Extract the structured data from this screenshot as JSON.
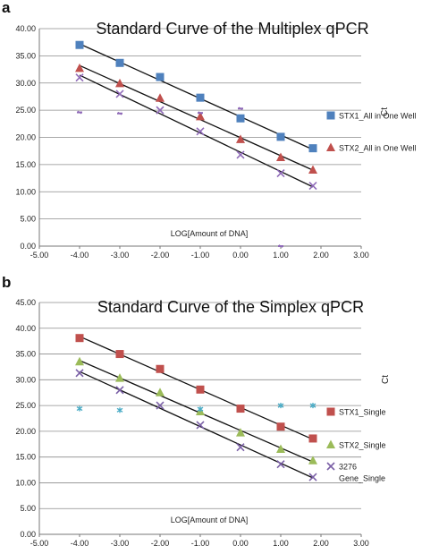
{
  "chart_data": [
    {
      "type": "scatter",
      "panel": "a",
      "title": "Standard Curve of the Multiplex qPCR",
      "xlabel": "LOG[Amount of DNA]",
      "ylabel": "Ct",
      "xlim": [
        -5,
        3
      ],
      "ylim": [
        0,
        40
      ],
      "xticks": [
        "-5.00",
        "-4.00",
        "-3.00",
        "-2.00",
        "-1.00",
        "0.00",
        "1.00",
        "2.00",
        "3.00"
      ],
      "yticks": [
        "0.00",
        "5.00",
        "10.00",
        "15.00",
        "20.00",
        "25.00",
        "30.00",
        "35.00",
        "40.00"
      ],
      "grid": "horizontal",
      "legend_position": "right",
      "series": [
        {
          "name": "STX1_All in One Well",
          "marker": "square",
          "color": "#4f81bd",
          "trendline": true,
          "x": [
            -4,
            -3,
            -2,
            -1,
            0,
            1,
            1.8
          ],
          "y": [
            37.0,
            33.7,
            31.1,
            27.3,
            23.5,
            20.1,
            18.0
          ]
        },
        {
          "name": "STX2_All in One Well",
          "marker": "triangle",
          "color": "#c0504d",
          "trendline": true,
          "x": [
            -4,
            -3,
            -2,
            -1,
            0,
            1,
            1.8
          ],
          "y": [
            32.7,
            29.9,
            27.2,
            23.8,
            19.6,
            16.3,
            14.0
          ]
        },
        {
          "name": "",
          "marker": "x",
          "color": "#8f6ab8",
          "trendline": true,
          "x": [
            -4,
            -3,
            -2,
            -1,
            0,
            1,
            1.8
          ],
          "y": [
            31.0,
            28.0,
            25.0,
            21.1,
            16.8,
            13.4,
            11.1
          ]
        },
        {
          "name": "",
          "marker": "dash",
          "color": "#8f6ab8",
          "trendline": false,
          "x": [
            -4,
            -3,
            -1,
            0,
            1
          ],
          "y": [
            24.6,
            24.4,
            24.5,
            25.3,
            0.0
          ]
        }
      ]
    },
    {
      "type": "scatter",
      "panel": "b",
      "title": "Standard Curve of the Simplex qPCR",
      "xlabel": "LOG[Amount of DNA]",
      "ylabel": "Ct",
      "xlim": [
        -5,
        3
      ],
      "ylim": [
        0,
        45
      ],
      "xticks": [
        "-5.00",
        "-4.00",
        "-3.00",
        "-2.00",
        "-1.00",
        "0.00",
        "1.00",
        "2.00",
        "3.00"
      ],
      "yticks": [
        "0.00",
        "5.00",
        "10.00",
        "15.00",
        "20.00",
        "25.00",
        "30.00",
        "35.00",
        "40.00",
        "45.00"
      ],
      "grid": "horizontal",
      "legend_position": "right",
      "series": [
        {
          "name": "STX1_Single",
          "marker": "square",
          "color": "#c0504d",
          "trendline": true,
          "x": [
            -4,
            -3,
            -2,
            -1,
            0,
            1,
            1.8
          ],
          "y": [
            38.1,
            35.0,
            32.1,
            28.1,
            24.4,
            20.9,
            18.6
          ]
        },
        {
          "name": "STX2_Single",
          "marker": "triangle",
          "color": "#9bbb59",
          "trendline": true,
          "x": [
            -4,
            -3,
            -2,
            -1,
            0,
            1,
            1.8
          ],
          "y": [
            33.5,
            30.3,
            27.5,
            23.8,
            19.7,
            16.5,
            14.3
          ]
        },
        {
          "name": "3276 Gene_Single",
          "marker": "x",
          "color": "#7a5fa6",
          "trendline": true,
          "x": [
            -4,
            -3,
            -2,
            -1,
            0,
            1,
            1.8
          ],
          "y": [
            31.3,
            28.0,
            25.0,
            21.2,
            16.9,
            13.6,
            11.1
          ]
        },
        {
          "name": "",
          "marker": "star",
          "color": "#4bacc6",
          "trendline": false,
          "x": [
            -4,
            -3,
            -1,
            1,
            1.8
          ],
          "y": [
            24.4,
            24.1,
            24.3,
            25.0,
            25.0
          ]
        }
      ]
    }
  ]
}
